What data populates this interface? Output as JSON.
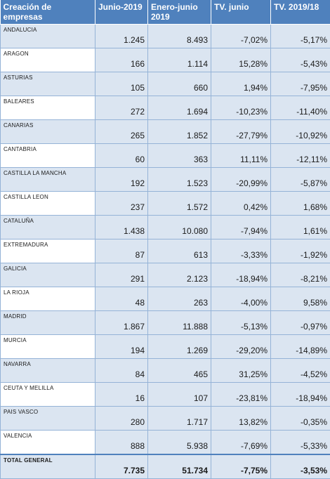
{
  "headers": [
    "Creación de empresas",
    "Junio-2019",
    "Enero-junio 2019",
    "TV. junio",
    "TV. 2019/18"
  ],
  "rows": [
    {
      "region": "ANDALUCIA",
      "junio": "1.245",
      "enero_junio": "8.493",
      "tv_junio": "-7,02%",
      "tv_anual": "-5,17%"
    },
    {
      "region": "ARAGON",
      "junio": "166",
      "enero_junio": "1.114",
      "tv_junio": "15,28%",
      "tv_anual": "-5,43%"
    },
    {
      "region": "ASTURIAS",
      "junio": "105",
      "enero_junio": "660",
      "tv_junio": "1,94%",
      "tv_anual": "-7,95%"
    },
    {
      "region": "BALEARES",
      "junio": "272",
      "enero_junio": "1.694",
      "tv_junio": "-10,23%",
      "tv_anual": "-11,40%"
    },
    {
      "region": "CANARIAS",
      "junio": "265",
      "enero_junio": "1.852",
      "tv_junio": "-27,79%",
      "tv_anual": "-10,92%"
    },
    {
      "region": "CANTABRIA",
      "junio": "60",
      "enero_junio": "363",
      "tv_junio": "11,11%",
      "tv_anual": "-12,11%"
    },
    {
      "region": "CASTILLA LA MANCHA",
      "junio": "192",
      "enero_junio": "1.523",
      "tv_junio": "-20,99%",
      "tv_anual": "-5,87%"
    },
    {
      "region": "CASTILLA LEON",
      "junio": "237",
      "enero_junio": "1.572",
      "tv_junio": "0,42%",
      "tv_anual": "1,68%"
    },
    {
      "region": "CATALUÑA",
      "junio": "1.438",
      "enero_junio": "10.080",
      "tv_junio": "-7,94%",
      "tv_anual": "1,61%"
    },
    {
      "region": "EXTREMADURA",
      "junio": "87",
      "enero_junio": "613",
      "tv_junio": "-3,33%",
      "tv_anual": "-1,92%"
    },
    {
      "region": "GALICIA",
      "junio": "291",
      "enero_junio": "2.123",
      "tv_junio": "-18,94%",
      "tv_anual": "-8,21%"
    },
    {
      "region": "LA RIOJA",
      "junio": "48",
      "enero_junio": "263",
      "tv_junio": "-4,00%",
      "tv_anual": "9,58%"
    },
    {
      "region": "MADRID",
      "junio": "1.867",
      "enero_junio": "11.888",
      "tv_junio": "-5,13%",
      "tv_anual": "-0,97%"
    },
    {
      "region": "MURCIA",
      "junio": "194",
      "enero_junio": "1.269",
      "tv_junio": "-29,20%",
      "tv_anual": "-14,89%"
    },
    {
      "region": "NAVARRA",
      "junio": "84",
      "enero_junio": "465",
      "tv_junio": "31,25%",
      "tv_anual": "-4,52%"
    },
    {
      "region": "CEUTA Y MELILLA",
      "junio": "16",
      "enero_junio": "107",
      "tv_junio": "-23,81%",
      "tv_anual": "-18,94%"
    },
    {
      "region": "PAIS VASCO",
      "junio": "280",
      "enero_junio": "1.717",
      "tv_junio": "13,82%",
      "tv_anual": "-0,35%"
    },
    {
      "region": "VALENCIA",
      "junio": "888",
      "enero_junio": "5.938",
      "tv_junio": "-7,69%",
      "tv_anual": "-5,33%"
    }
  ],
  "total": {
    "region": "TOTAL GENERAL",
    "junio": "7.735",
    "enero_junio": "51.734",
    "tv_junio": "-7,75%",
    "tv_anual": "-3,53%"
  },
  "colors": {
    "header_bg": "#4f81bd",
    "band_bg": "#dbe5f1",
    "border": "#95b3d7"
  }
}
